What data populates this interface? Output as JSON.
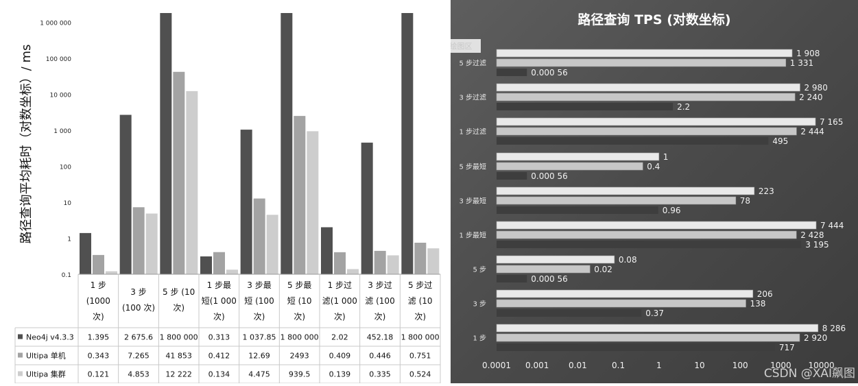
{
  "colors": {
    "left_series": [
      "#505050",
      "#a3a3a3",
      "#cdcdcd"
    ],
    "right_series": [
      "#e9e9e9",
      "#c7c7c7",
      "#3e3e3e"
    ],
    "right_bg": "#4e4e4e"
  },
  "chart_data": [
    {
      "type": "bar",
      "orientation": "vertical",
      "scale": "log",
      "ylabel": "路径查询平均耗时（对数坐标）/ ms",
      "ylim": [
        0.1,
        1800000
      ],
      "yticks": [
        {
          "value": 0.1,
          "label": "0.1"
        },
        {
          "value": 1,
          "label": "1"
        },
        {
          "value": 10,
          "label": "10"
        },
        {
          "value": 100,
          "label": "100"
        },
        {
          "value": 1000,
          "label": "1 000"
        },
        {
          "value": 10000,
          "label": "10 000"
        },
        {
          "value": 100000,
          "label": "100 000"
        },
        {
          "value": 1000000,
          "label": "1 000 000"
        }
      ],
      "categories": [
        [
          "1 步",
          "(1000",
          "次)"
        ],
        [
          "3 步",
          "(100 次)"
        ],
        [
          "5 步 (10",
          "次)"
        ],
        [
          "1 步最",
          "短(1 000",
          "次)"
        ],
        [
          "3 步最",
          "短 (100",
          "次)"
        ],
        [
          "5 步最",
          "短 (10",
          "次)"
        ],
        [
          "1 步过",
          "滤(1 000",
          "次)"
        ],
        [
          "3 步过",
          "滤 (100",
          "次)"
        ],
        [
          "5 步过",
          "滤 (10",
          "次)"
        ]
      ],
      "series": [
        {
          "name": "Neo4j v4.3.3",
          "values": [
            1.395,
            2675.6,
            1800000,
            0.313,
            1037.85,
            1800000,
            2.02,
            452.18,
            1800000
          ],
          "labels": [
            "1.395",
            "2 675.6",
            "1 800 000",
            "0.313",
            "1 037.85",
            "1 800 000",
            "2.02",
            "452.18",
            "1 800 000"
          ]
        },
        {
          "name": "Ultipa 单机",
          "values": [
            0.343,
            7.265,
            41853,
            0.412,
            12.69,
            2493,
            0.409,
            0.446,
            0.751
          ],
          "labels": [
            "0.343",
            "7.265",
            "41 853",
            "0.412",
            "12.69",
            "2493",
            "0.409",
            "0.446",
            "0.751"
          ]
        },
        {
          "name": "Ultipa 集群",
          "values": [
            0.121,
            4.853,
            12222,
            0.134,
            4.475,
            939.5,
            0.139,
            0.335,
            0.524
          ],
          "labels": [
            "0.121",
            "4.853",
            "12 222",
            "0.134",
            "4.475",
            "939.5",
            "0.139",
            "0.335",
            "0.524"
          ]
        }
      ]
    },
    {
      "type": "bar",
      "orientation": "horizontal",
      "scale": "log",
      "title": "路径查询 TPS (对数坐标)",
      "xlim": [
        0.0001,
        10000
      ],
      "xticks": [
        {
          "value": 0.0001,
          "label": "0.0001"
        },
        {
          "value": 0.001,
          "label": "0.001"
        },
        {
          "value": 0.01,
          "label": "0.01"
        },
        {
          "value": 0.1,
          "label": "0.1"
        },
        {
          "value": 1,
          "label": "1"
        },
        {
          "value": 10,
          "label": "10"
        },
        {
          "value": 100,
          "label": "100"
        },
        {
          "value": 1000,
          "label": "1000"
        },
        {
          "value": 10000,
          "label": "10000"
        }
      ],
      "categories": [
        "5 步过滤",
        "3 步过滤",
        "1 步过滤",
        "5 步最短",
        "3 步最短",
        "1 步最短",
        "5 步",
        "3 步",
        "1 步"
      ],
      "series": [
        {
          "values": [
            1908,
            2980,
            7165,
            1,
            223,
            7444,
            0.08,
            206,
            8286
          ],
          "labels": [
            "1 908",
            "2 980",
            "7 165",
            "1",
            "223",
            "7 444",
            "0.08",
            "206",
            "8 286"
          ]
        },
        {
          "values": [
            1331,
            2240,
            2444,
            0.4,
            78,
            2428,
            0.02,
            138,
            2920
          ],
          "labels": [
            "1 331",
            "2 240",
            "2 444",
            "0.4",
            "78",
            "2 428",
            "0.02",
            "138",
            "2 920"
          ]
        },
        {
          "values": [
            0.00056,
            2.2,
            495,
            0.00056,
            0.96,
            3195,
            0.00056,
            0.37,
            717
          ],
          "labels": [
            "0.000 56",
            "2.2",
            "495",
            "0.000 56",
            "0.96",
            "3 195",
            "0.000 56",
            "0.37",
            "717"
          ]
        }
      ],
      "annotations": [
        "绘图区"
      ]
    }
  ],
  "watermark": "CSDN @XAI飙图"
}
